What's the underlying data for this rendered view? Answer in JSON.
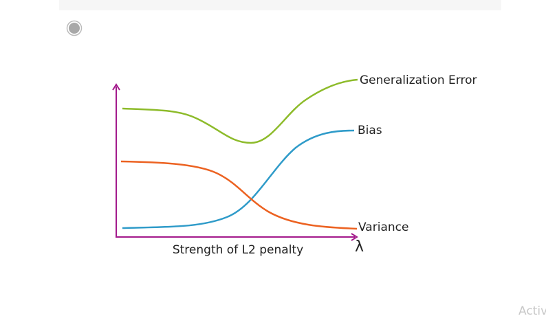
{
  "diagram": {
    "labels": {
      "generalization_error": "Generalization Error",
      "bias": "Bias",
      "variance": "Variance",
      "x_axis": "Strength of L2 penalty",
      "lambda": "λ"
    }
  },
  "watermark": "Activ"
}
